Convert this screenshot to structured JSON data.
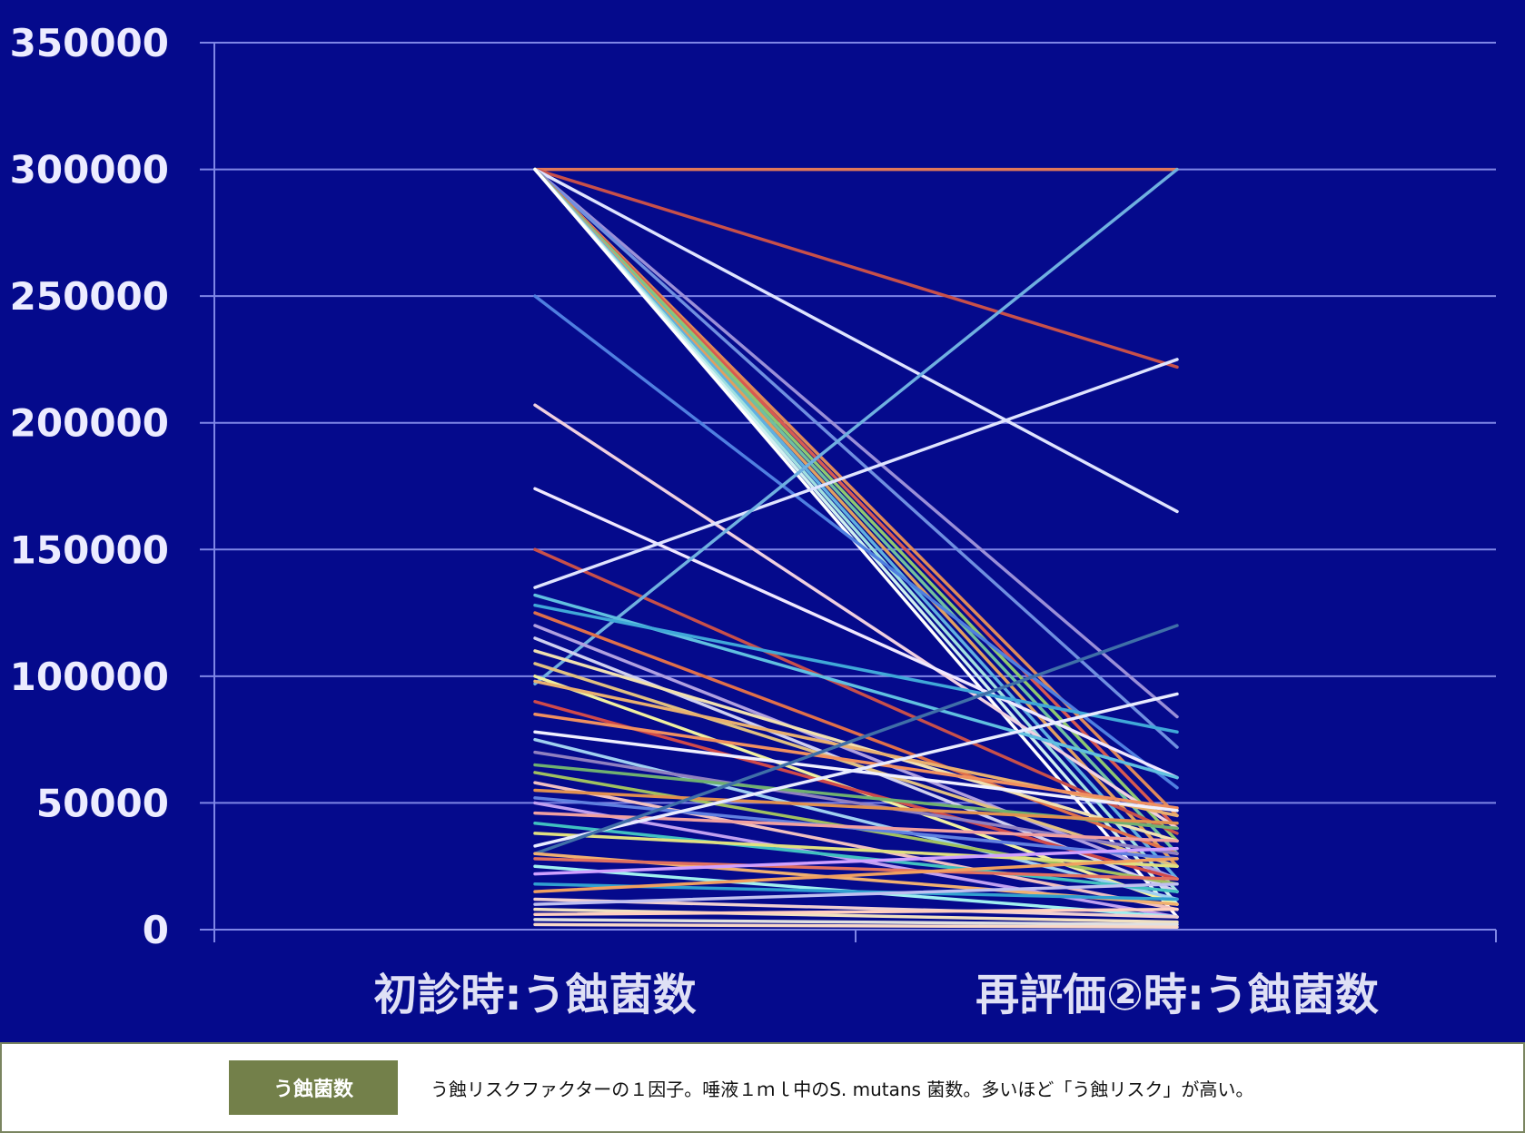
{
  "chart_data": {
    "type": "line",
    "title": "",
    "xlabel": "",
    "ylabel": "",
    "categories": [
      "初診時:う蝕菌数",
      "再評価②時:う蝕菌数"
    ],
    "ylim": [
      0,
      350000
    ],
    "yticks": [
      0,
      50000,
      100000,
      150000,
      200000,
      250000,
      300000,
      350000
    ],
    "grid": true,
    "legend": "none",
    "background": "#050a8c",
    "series": [
      {
        "values": [
          300000,
          300000
        ],
        "color": "#e0785a"
      },
      {
        "values": [
          300000,
          222000
        ],
        "color": "#c8504a"
      },
      {
        "values": [
          300000,
          165000
        ],
        "color": "#dfe4ff"
      },
      {
        "values": [
          300000,
          84000
        ],
        "color": "#9a8fd8"
      },
      {
        "values": [
          300000,
          72000
        ],
        "color": "#6f8fe0"
      },
      {
        "values": [
          300000,
          45000
        ],
        "color": "#e08a5a"
      },
      {
        "values": [
          300000,
          40000
        ],
        "color": "#d85a50"
      },
      {
        "values": [
          300000,
          35000
        ],
        "color": "#8fc870"
      },
      {
        "values": [
          300000,
          30000
        ],
        "color": "#70c0a0"
      },
      {
        "values": [
          300000,
          25000
        ],
        "color": "#e0a060"
      },
      {
        "values": [
          300000,
          20000
        ],
        "color": "#60b0e0"
      },
      {
        "values": [
          300000,
          15000
        ],
        "color": "#a0e0e0"
      },
      {
        "values": [
          300000,
          10000
        ],
        "color": "#d0f0f0"
      },
      {
        "values": [
          300000,
          5000
        ],
        "color": "#ffffff"
      },
      {
        "values": [
          250000,
          56000
        ],
        "color": "#4f7fe0"
      },
      {
        "values": [
          207000,
          40000
        ],
        "color": "#f0d0e0"
      },
      {
        "values": [
          174000,
          60000
        ],
        "color": "#f0e8ff"
      },
      {
        "values": [
          150000,
          38000
        ],
        "color": "#c8504a"
      },
      {
        "values": [
          135000,
          225000
        ],
        "color": "#dfe4ff"
      },
      {
        "values": [
          97000,
          300000
        ],
        "color": "#6fb0e0"
      },
      {
        "values": [
          132000,
          60000
        ],
        "color": "#60c0e0"
      },
      {
        "values": [
          128000,
          78000
        ],
        "color": "#40a8d8"
      },
      {
        "values": [
          125000,
          30000
        ],
        "color": "#e0704a"
      },
      {
        "values": [
          120000,
          20000
        ],
        "color": "#b0a0e0"
      },
      {
        "values": [
          115000,
          15000
        ],
        "color": "#d0d0f0"
      },
      {
        "values": [
          110000,
          35000
        ],
        "color": "#f0e0b0"
      },
      {
        "values": [
          105000,
          25000
        ],
        "color": "#e0c080"
      },
      {
        "values": [
          100000,
          10000
        ],
        "color": "#f0f0a0"
      },
      {
        "values": [
          98000,
          45000
        ],
        "color": "#e8b070"
      },
      {
        "values": [
          90000,
          20000
        ],
        "color": "#d04a4a"
      },
      {
        "values": [
          85000,
          48000
        ],
        "color": "#f09060"
      },
      {
        "values": [
          78000,
          47000
        ],
        "color": "#f0f0ff"
      },
      {
        "values": [
          75000,
          12000
        ],
        "color": "#a0d0f0"
      },
      {
        "values": [
          70000,
          30000
        ],
        "color": "#9080c0"
      },
      {
        "values": [
          65000,
          40000
        ],
        "color": "#70b070"
      },
      {
        "values": [
          62000,
          18000
        ],
        "color": "#a0c060"
      },
      {
        "values": [
          58000,
          8000
        ],
        "color": "#f0c0c0"
      },
      {
        "values": [
          55000,
          42000
        ],
        "color": "#e09050"
      },
      {
        "values": [
          52000,
          28000
        ],
        "color": "#6080e0"
      },
      {
        "values": [
          50000,
          5000
        ],
        "color": "#c0a0f0"
      },
      {
        "values": [
          46000,
          35000
        ],
        "color": "#f0a0a0"
      },
      {
        "values": [
          42000,
          15000
        ],
        "color": "#40c0c0"
      },
      {
        "values": [
          38000,
          25000
        ],
        "color": "#e0e080"
      },
      {
        "values": [
          33000,
          93000
        ],
        "color": "#e8ecff"
      },
      {
        "values": [
          30000,
          120000
        ],
        "color": "#3f6fa8"
      },
      {
        "values": [
          30000,
          10000
        ],
        "color": "#f0b070"
      },
      {
        "values": [
          28000,
          20000
        ],
        "color": "#e07060"
      },
      {
        "values": [
          25000,
          5000
        ],
        "color": "#a0f0f0"
      },
      {
        "values": [
          22000,
          32000
        ],
        "color": "#d0a0ff"
      },
      {
        "values": [
          18000,
          12000
        ],
        "color": "#30a0d0"
      },
      {
        "values": [
          15000,
          28000
        ],
        "color": "#f0a060"
      },
      {
        "values": [
          12000,
          5000
        ],
        "color": "#f0d0d0"
      },
      {
        "values": [
          10000,
          18000
        ],
        "color": "#c0c0f0"
      },
      {
        "values": [
          8000,
          3000
        ],
        "color": "#f0e0c0"
      },
      {
        "values": [
          6000,
          8000
        ],
        "color": "#ffd0c0"
      },
      {
        "values": [
          4000,
          2000
        ],
        "color": "#e0e0e0"
      },
      {
        "values": [
          2000,
          1000
        ],
        "color": "#f8d8c8"
      }
    ]
  },
  "footer": {
    "tag": "う蝕菌数",
    "description": "う蝕リスクファクターの１因子。唾液１ｍｌ中のS. mutans 菌数。多いほど「う蝕リスク」が高い。",
    "tag_color": "#73804a"
  }
}
